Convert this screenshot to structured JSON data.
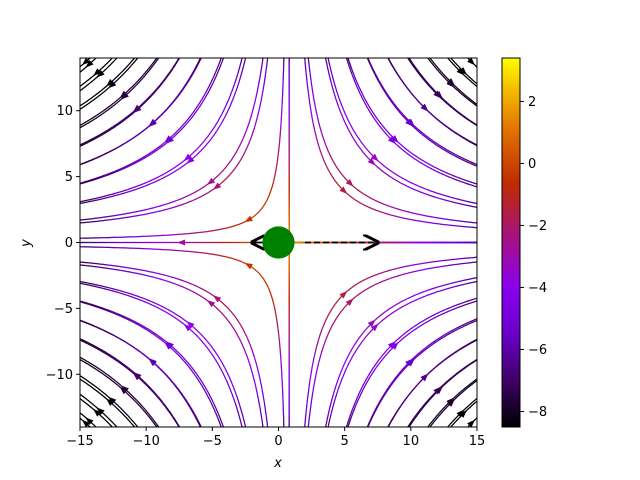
{
  "chart_data": {
    "type": "streamplot",
    "xlabel": "x",
    "ylabel": "y",
    "xlim": [
      -15,
      15
    ],
    "ylim": [
      -14,
      14
    ],
    "x_ticks": [
      -15,
      -10,
      -5,
      0,
      5,
      10,
      15
    ],
    "x_tick_labels": [
      "−15",
      "−10",
      "−5",
      "0",
      "5",
      "10",
      "15"
    ],
    "y_ticks": [
      -10,
      -5,
      0,
      5,
      10
    ],
    "y_tick_labels": [
      "−10",
      "−5",
      "0",
      "5",
      "10"
    ],
    "colorbar": {
      "colormap": "gnuplot",
      "range": [
        -8.5,
        3.4
      ],
      "ticks": [
        2,
        0,
        -2,
        -4,
        -6,
        -8
      ],
      "tick_labels": [
        "2",
        "0",
        "−2",
        "−4",
        "−6",
        "−8"
      ]
    },
    "particle": {
      "x": 0,
      "y": 0,
      "radius": 0.9,
      "color": "#008000"
    },
    "arrows": [
      {
        "from": [
          0,
          0
        ],
        "to": [
          -2,
          0
        ],
        "style": "solid",
        "color": "#000000"
      },
      {
        "from": [
          2,
          0
        ],
        "to": [
          7.5,
          0
        ],
        "style": "dashed",
        "color": "#000000"
      }
    ],
    "grid": false
  }
}
